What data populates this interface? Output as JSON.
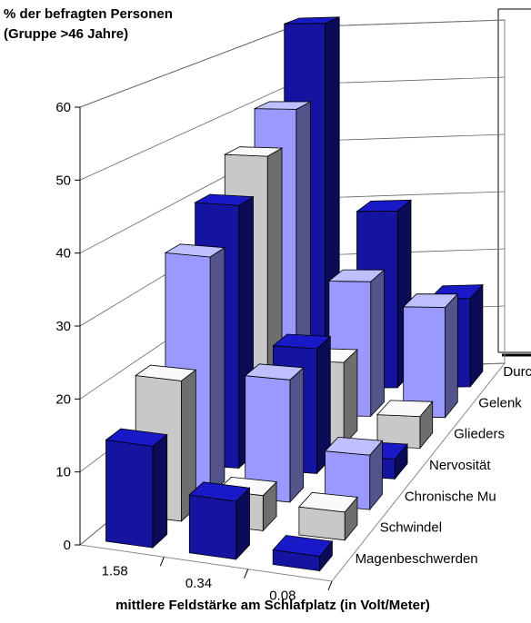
{
  "chart_data": {
    "type": "bar3d",
    "ylabel": [
      "% der befragten Personen",
      "(Gruppe >46 Jahre)"
    ],
    "xlabel": "mittlere Feldstärke am Schlafplatz (in Volt/Meter)",
    "categories": [
      "1.58",
      "0.34",
      "0.08"
    ],
    "series": [
      {
        "name": "Magenbeschwerden",
        "color": "#1414a0",
        "values": [
          14,
          8,
          2
        ]
      },
      {
        "name": "Schwindel",
        "color": "#c8c8c8",
        "values": [
          20,
          5,
          4
        ]
      },
      {
        "name": "Chronische Mu",
        "color": "#9999ff",
        "values": [
          35,
          18,
          8
        ]
      },
      {
        "name": "Nervosität",
        "color": "#1414a0",
        "values": [
          40,
          19,
          3
        ]
      },
      {
        "name": "Glieders",
        "color": "#c8c8c8",
        "values": [
          45,
          13,
          5
        ]
      },
      {
        "name": "Gelenk",
        "color": "#9999ff",
        "values": [
          50,
          22,
          18
        ]
      },
      {
        "name": "Durc",
        "color": "#1414a0",
        "values": [
          62,
          30,
          15
        ]
      }
    ],
    "ylim": [
      0,
      60
    ],
    "yticks": [
      0,
      10,
      20,
      30,
      40,
      50,
      60
    ],
    "grid": true
  }
}
